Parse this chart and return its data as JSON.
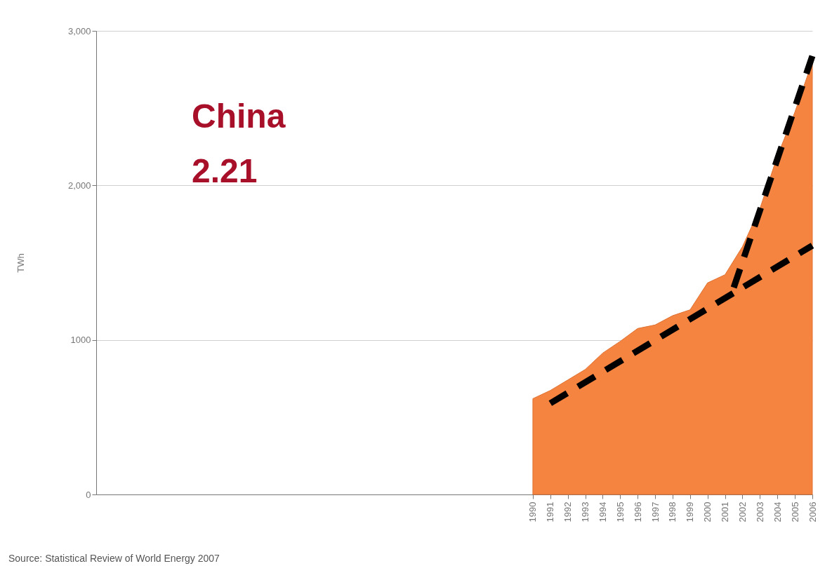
{
  "chart_data": {
    "type": "area",
    "ylabel": "TWh",
    "annotations": [
      "China",
      "2.21",
      "Source: Statistical Review of World Energy 2007"
    ],
    "xlim": [
      1965,
      2006
    ],
    "xticks": [
      1990,
      1991,
      1992,
      1993,
      1994,
      1995,
      1996,
      1997,
      1998,
      1999,
      2000,
      2001,
      2002,
      2003,
      2004,
      2005,
      2006
    ],
    "ylim": [
      0,
      3000
    ],
    "yticks": [
      {
        "value": 0,
        "label": "0"
      },
      {
        "value": 1000,
        "label": "1000"
      },
      {
        "value": 2000,
        "label": "2,000"
      },
      {
        "value": 3000,
        "label": "3,000"
      }
    ],
    "grid": "y",
    "series": [
      {
        "color": "#f4843f",
        "x": [
          1990,
          1991,
          1992,
          1993,
          1994,
          1995,
          1996,
          1997,
          1998,
          1999,
          2000,
          2001,
          2002,
          2003,
          2004,
          2005,
          2006
        ],
        "values": [
          620,
          673,
          741,
          809,
          915,
          991,
          1074,
          1097,
          1157,
          1195,
          1369,
          1422,
          1604,
          1850,
          2190,
          2474,
          2800
        ]
      },
      {
        "type": "line",
        "color": "#000000",
        "line_style": "dashed",
        "x": [
          1991,
          2006
        ],
        "values": [
          590,
          1611
        ]
      },
      {
        "type": "line",
        "color": "#000000",
        "line_style": "dashed",
        "x": [
          2001.5,
          2006
        ],
        "values": [
          1339,
          2837
        ]
      }
    ]
  }
}
